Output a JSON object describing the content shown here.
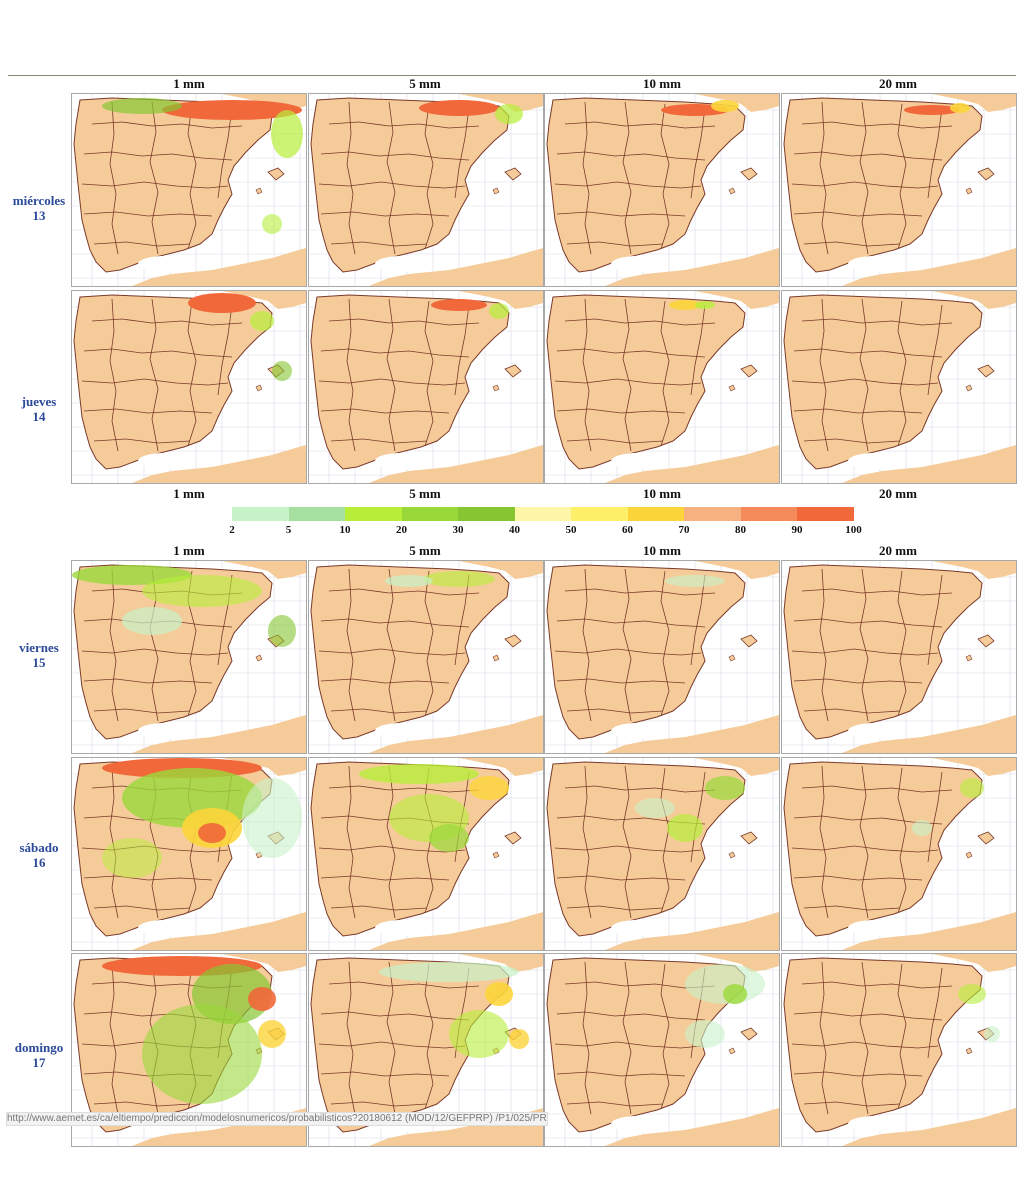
{
  "thresholds": [
    "1 mm",
    "5 mm",
    "10 mm",
    "20 mm"
  ],
  "days": [
    {
      "name": "miércoles",
      "num": "13"
    },
    {
      "name": "jueves",
      "num": "14"
    },
    {
      "name": "viernes",
      "num": "15"
    },
    {
      "name": "sábado",
      "num": "16"
    },
    {
      "name": "domingo",
      "num": "17"
    }
  ],
  "legend": {
    "ticks": [
      "2",
      "5",
      "10",
      "20",
      "30",
      "40",
      "50",
      "60",
      "70",
      "80",
      "90",
      "100"
    ],
    "colors": [
      "#c8f2c8",
      "#a6e0a0",
      "#b8ee3a",
      "#9ad83a",
      "#86c632",
      "#fff7a8",
      "#fff06a",
      "#fcd53a",
      "#f7b080",
      "#f58a5a",
      "#f1683a"
    ]
  },
  "status_url": "http://www.aemet.es/ca/eltiempo/prediccion/modelosnumericos/probabilisticos?20180612 (MOD/12/GEFPRP) /P1/025/PRP_24_1-1.png"
}
